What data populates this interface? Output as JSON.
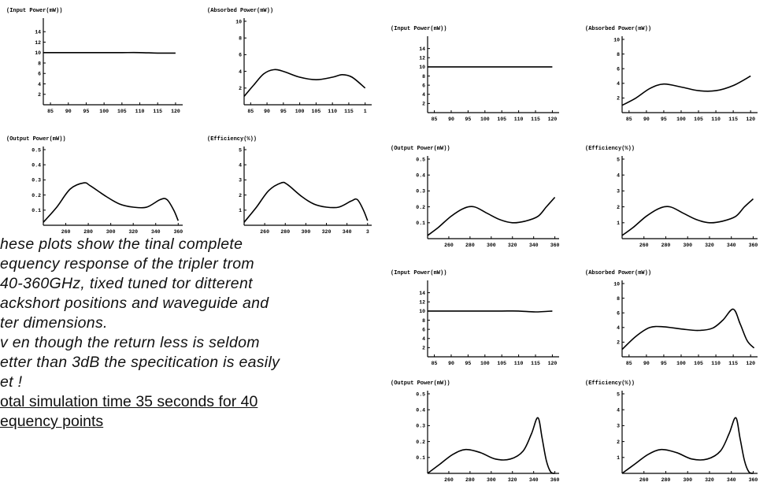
{
  "caption": {
    "lines": [
      "hese plots show the tinal complete",
      "equency response of the tripler trom",
      "40-360GHz, tixed tuned tor ditterent",
      "ackshort positions and waveguide and",
      "ter dimensions.",
      "v en though the return less is seldom",
      "etter than 3dB the specitication is easily",
      "et !"
    ],
    "note_lines": [
      "otal simulation time 35 seconds for 40",
      "equency points"
    ]
  },
  "chart_data": [
    {
      "type": "line",
      "title": "(Input Power(mW))",
      "x_ticks": [
        "85",
        "90",
        "95",
        "100",
        "105",
        "110",
        "115",
        "120"
      ],
      "y_ticks": [
        "2",
        "4",
        "6",
        "8",
        "10",
        "12",
        "14"
      ],
      "ylim": [
        0,
        16
      ],
      "x": [
        83,
        85,
        90,
        95,
        100,
        105,
        110,
        115,
        120
      ],
      "y": [
        10,
        10,
        10,
        10,
        10,
        10,
        10,
        9.9,
        9.9
      ]
    },
    {
      "type": "line",
      "title": "(Absorbed Power(mW))",
      "x_ticks": [
        "85",
        "90",
        "95",
        "100",
        "105",
        "110",
        "115",
        "1"
      ],
      "y_ticks": [
        "2",
        "4",
        "6",
        "8",
        "10"
      ],
      "ylim": [
        0,
        10
      ],
      "x": [
        83,
        86,
        89,
        92,
        95,
        100,
        105,
        110,
        113,
        116,
        120
      ],
      "y": [
        1.0,
        2.4,
        3.7,
        4.2,
        4.0,
        3.3,
        3.0,
        3.3,
        3.6,
        3.3,
        2.0
      ]
    },
    {
      "type": "line",
      "title": "(Output Power(mW))",
      "x_ticks": [
        "260",
        "280",
        "300",
        "320",
        "340",
        "360"
      ],
      "y_ticks": [
        "0.1",
        "0.2",
        "0.3",
        "0.4",
        "0.5"
      ],
      "ylim": [
        0,
        0.5
      ],
      "x": [
        240,
        252,
        264,
        276,
        282,
        296,
        308,
        320,
        332,
        344,
        350,
        356,
        360
      ],
      "y": [
        0.02,
        0.12,
        0.24,
        0.28,
        0.26,
        0.19,
        0.14,
        0.12,
        0.12,
        0.17,
        0.17,
        0.1,
        0.03
      ]
    },
    {
      "type": "line",
      "title": "(Efficiency(%))",
      "x_ticks": [
        "260",
        "280",
        "300",
        "320",
        "340",
        "3"
      ],
      "y_ticks": [
        "1",
        "2",
        "3",
        "4",
        "5"
      ],
      "ylim": [
        0,
        5
      ],
      "x": [
        240,
        252,
        264,
        276,
        282,
        296,
        308,
        320,
        332,
        344,
        350,
        356,
        360
      ],
      "y": [
        0.2,
        1.2,
        2.3,
        2.8,
        2.7,
        1.9,
        1.4,
        1.2,
        1.2,
        1.6,
        1.7,
        1.0,
        0.3
      ]
    },
    {
      "type": "line",
      "title": "(Input Power(mW))",
      "x_ticks": [
        "85",
        "90",
        "95",
        "100",
        "105",
        "110",
        "115",
        "120"
      ],
      "y_ticks": [
        "2",
        "4",
        "6",
        "8",
        "10",
        "12",
        "14"
      ],
      "ylim": [
        0,
        16
      ],
      "x": [
        83,
        85,
        90,
        95,
        100,
        105,
        110,
        115,
        120
      ],
      "y": [
        10,
        10,
        10,
        10,
        10,
        10,
        10,
        10,
        10
      ]
    },
    {
      "type": "line",
      "title": "(Absorbed Power(mW))",
      "x_ticks": [
        "85",
        "90",
        "95",
        "100",
        "105",
        "110",
        "115",
        "120"
      ],
      "y_ticks": [
        "2",
        "4",
        "6",
        "8",
        "10"
      ],
      "ylim": [
        0,
        10
      ],
      "x": [
        83,
        87,
        91,
        95,
        100,
        105,
        110,
        115,
        120
      ],
      "y": [
        1.0,
        2.0,
        3.3,
        3.9,
        3.5,
        3.0,
        3.0,
        3.7,
        5.0
      ]
    },
    {
      "type": "line",
      "title": "(Output Power(mW))",
      "x_ticks": [
        "260",
        "280",
        "300",
        "320",
        "340",
        "360"
      ],
      "y_ticks": [
        "0.1",
        "0.2",
        "0.3",
        "0.4",
        "0.5"
      ],
      "ylim": [
        0,
        0.5
      ],
      "x": [
        240,
        250,
        262,
        274,
        284,
        296,
        308,
        320,
        332,
        344,
        352,
        360
      ],
      "y": [
        0.02,
        0.07,
        0.14,
        0.19,
        0.2,
        0.16,
        0.12,
        0.1,
        0.11,
        0.14,
        0.2,
        0.26
      ]
    },
    {
      "type": "line",
      "title": "(Efficiency(%))",
      "x_ticks": [
        "260",
        "280",
        "300",
        "320",
        "340",
        "360"
      ],
      "y_ticks": [
        "1",
        "2",
        "3",
        "4",
        "5"
      ],
      "ylim": [
        0,
        5
      ],
      "x": [
        240,
        250,
        262,
        274,
        284,
        296,
        308,
        320,
        332,
        344,
        352,
        360
      ],
      "y": [
        0.2,
        0.7,
        1.4,
        1.9,
        2.0,
        1.6,
        1.2,
        1.0,
        1.1,
        1.4,
        2.0,
        2.5
      ]
    },
    {
      "type": "line",
      "title": "(Input Power(mW))",
      "x_ticks": [
        "85",
        "90",
        "95",
        "100",
        "105",
        "110",
        "115",
        "120"
      ],
      "y_ticks": [
        "2",
        "4",
        "6",
        "8",
        "10",
        "12",
        "14"
      ],
      "ylim": [
        0,
        16
      ],
      "x": [
        83,
        85,
        90,
        95,
        100,
        105,
        110,
        115,
        120
      ],
      "y": [
        10,
        10,
        10,
        10,
        10,
        10,
        10,
        9.8,
        10
      ]
    },
    {
      "type": "line",
      "title": "(Absorbed Power(mW))",
      "x_ticks": [
        "85",
        "90",
        "95",
        "100",
        "105",
        "110",
        "115",
        "120"
      ],
      "y_ticks": [
        "2",
        "4",
        "6",
        "8",
        "10"
      ],
      "ylim": [
        0,
        10
      ],
      "x": [
        83,
        87,
        91,
        95,
        100,
        105,
        109,
        112,
        115,
        117,
        119,
        121
      ],
      "y": [
        1.0,
        2.8,
        4.0,
        4.1,
        3.8,
        3.6,
        3.9,
        5.0,
        6.5,
        4.5,
        2.2,
        1.2
      ]
    },
    {
      "type": "line",
      "title": "(Output Power(mW))",
      "x_ticks": [
        "260",
        "280",
        "300",
        "320",
        "340",
        "360"
      ],
      "y_ticks": [
        "0.1",
        "0.2",
        "0.3",
        "0.4",
        "0.5"
      ],
      "ylim": [
        0,
        0.5
      ],
      "x": [
        240,
        252,
        264,
        276,
        290,
        304,
        318,
        330,
        338,
        344,
        348,
        352,
        356,
        360
      ],
      "y": [
        0.0,
        0.06,
        0.12,
        0.15,
        0.13,
        0.09,
        0.09,
        0.14,
        0.25,
        0.35,
        0.22,
        0.08,
        0.01,
        0.0
      ]
    },
    {
      "type": "line",
      "title": "(Efficiency(%))",
      "x_ticks": [
        "260",
        "280",
        "300",
        "320",
        "340",
        "360"
      ],
      "y_ticks": [
        "1",
        "2",
        "3",
        "4",
        "5"
      ],
      "ylim": [
        0,
        5
      ],
      "x": [
        240,
        252,
        264,
        276,
        290,
        304,
        318,
        330,
        338,
        344,
        348,
        352,
        356,
        360
      ],
      "y": [
        0.0,
        0.6,
        1.2,
        1.5,
        1.3,
        0.9,
        0.9,
        1.4,
        2.5,
        3.5,
        2.2,
        0.8,
        0.1,
        0.0
      ]
    }
  ]
}
